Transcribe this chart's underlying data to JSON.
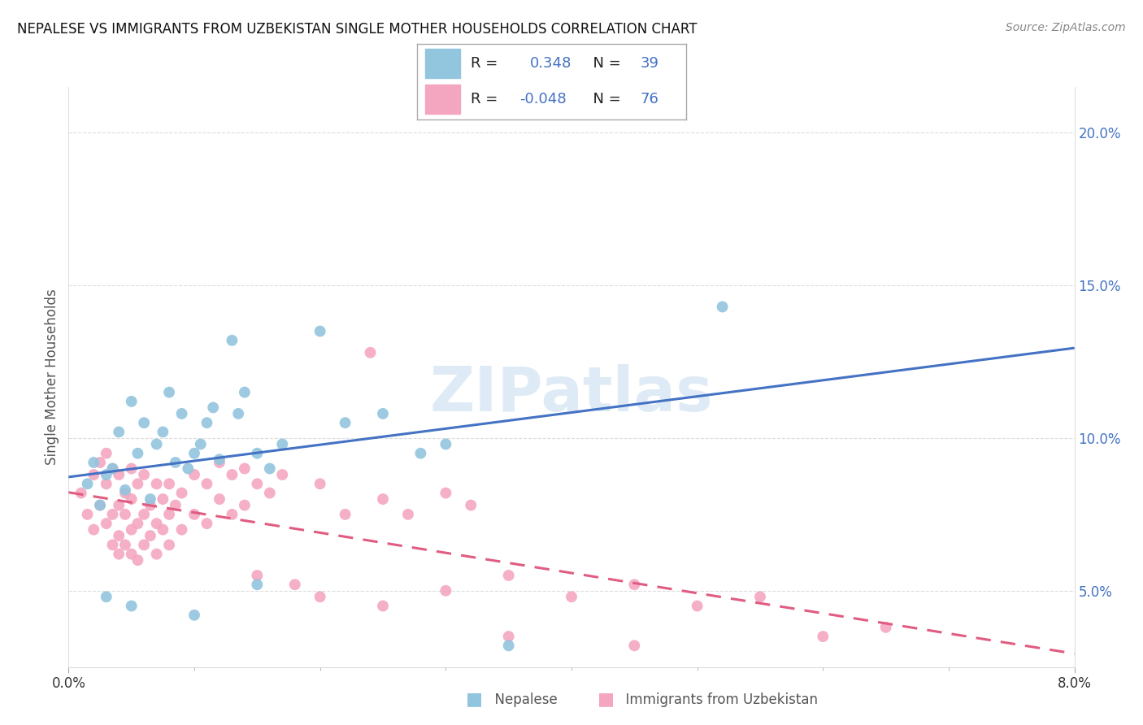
{
  "title": "NEPALESE VS IMMIGRANTS FROM UZBEKISTAN SINGLE MOTHER HOUSEHOLDS CORRELATION CHART",
  "source": "Source: ZipAtlas.com",
  "ylabel": "Single Mother Households",
  "watermark": "ZIPatlas",
  "x_min": 0.0,
  "x_max": 8.0,
  "y_min": 2.5,
  "y_max": 21.5,
  "ytick_labels": [
    "5.0%",
    "10.0%",
    "15.0%",
    "20.0%"
  ],
  "ytick_values": [
    5.0,
    10.0,
    15.0,
    20.0
  ],
  "xtick_labels": [
    "0.0%",
    "8.0%"
  ],
  "xtick_values": [
    0.0,
    8.0
  ],
  "xtick_minor": [
    1.0,
    2.0,
    3.0,
    4.0,
    5.0,
    6.0,
    7.0
  ],
  "nepalese_R": 0.348,
  "nepalese_N": 39,
  "uzbekistan_R": -0.048,
  "uzbekistan_N": 76,
  "nepalese_color": "#92c5de",
  "uzbekistan_color": "#f4a6c0",
  "nepalese_line_color": "#4472c4",
  "uzbekistan_line_color": "#e05c80",
  "legend_text_color": "#4472c4",
  "ytick_color": "#4472c4",
  "nepalese_scatter": [
    [
      0.15,
      8.5
    ],
    [
      0.2,
      9.2
    ],
    [
      0.25,
      7.8
    ],
    [
      0.3,
      8.8
    ],
    [
      0.35,
      9.0
    ],
    [
      0.4,
      10.2
    ],
    [
      0.45,
      8.3
    ],
    [
      0.5,
      11.2
    ],
    [
      0.55,
      9.5
    ],
    [
      0.6,
      10.5
    ],
    [
      0.65,
      8.0
    ],
    [
      0.7,
      9.8
    ],
    [
      0.75,
      10.2
    ],
    [
      0.8,
      11.5
    ],
    [
      0.85,
      9.2
    ],
    [
      0.9,
      10.8
    ],
    [
      0.95,
      9.0
    ],
    [
      1.0,
      9.5
    ],
    [
      1.05,
      9.8
    ],
    [
      1.1,
      10.5
    ],
    [
      1.15,
      11.0
    ],
    [
      1.2,
      9.3
    ],
    [
      1.3,
      13.2
    ],
    [
      1.35,
      10.8
    ],
    [
      1.4,
      11.5
    ],
    [
      1.5,
      9.5
    ],
    [
      1.6,
      9.0
    ],
    [
      1.7,
      9.8
    ],
    [
      2.0,
      13.5
    ],
    [
      2.2,
      10.5
    ],
    [
      2.5,
      10.8
    ],
    [
      2.8,
      9.5
    ],
    [
      3.0,
      9.8
    ],
    [
      0.3,
      4.8
    ],
    [
      0.5,
      4.5
    ],
    [
      1.0,
      4.2
    ],
    [
      1.5,
      5.2
    ],
    [
      5.2,
      14.3
    ],
    [
      3.5,
      3.2
    ]
  ],
  "uzbekistan_scatter": [
    [
      0.1,
      8.2
    ],
    [
      0.15,
      7.5
    ],
    [
      0.2,
      8.8
    ],
    [
      0.2,
      7.0
    ],
    [
      0.25,
      9.2
    ],
    [
      0.25,
      7.8
    ],
    [
      0.3,
      9.5
    ],
    [
      0.3,
      8.5
    ],
    [
      0.3,
      7.2
    ],
    [
      0.35,
      9.0
    ],
    [
      0.35,
      7.5
    ],
    [
      0.35,
      6.5
    ],
    [
      0.4,
      8.8
    ],
    [
      0.4,
      7.8
    ],
    [
      0.4,
      6.8
    ],
    [
      0.4,
      6.2
    ],
    [
      0.45,
      8.2
    ],
    [
      0.45,
      7.5
    ],
    [
      0.45,
      6.5
    ],
    [
      0.5,
      9.0
    ],
    [
      0.5,
      8.0
    ],
    [
      0.5,
      7.0
    ],
    [
      0.5,
      6.2
    ],
    [
      0.55,
      8.5
    ],
    [
      0.55,
      7.2
    ],
    [
      0.55,
      6.0
    ],
    [
      0.6,
      8.8
    ],
    [
      0.6,
      7.5
    ],
    [
      0.6,
      6.5
    ],
    [
      0.65,
      7.8
    ],
    [
      0.65,
      6.8
    ],
    [
      0.7,
      8.5
    ],
    [
      0.7,
      7.2
    ],
    [
      0.7,
      6.2
    ],
    [
      0.75,
      8.0
    ],
    [
      0.75,
      7.0
    ],
    [
      0.8,
      8.5
    ],
    [
      0.8,
      7.5
    ],
    [
      0.8,
      6.5
    ],
    [
      0.85,
      7.8
    ],
    [
      0.9,
      8.2
    ],
    [
      0.9,
      7.0
    ],
    [
      1.0,
      8.8
    ],
    [
      1.0,
      7.5
    ],
    [
      1.1,
      8.5
    ],
    [
      1.1,
      7.2
    ],
    [
      1.2,
      9.2
    ],
    [
      1.2,
      8.0
    ],
    [
      1.3,
      8.8
    ],
    [
      1.3,
      7.5
    ],
    [
      1.4,
      9.0
    ],
    [
      1.4,
      7.8
    ],
    [
      1.5,
      8.5
    ],
    [
      1.6,
      8.2
    ],
    [
      1.7,
      8.8
    ],
    [
      2.0,
      8.5
    ],
    [
      2.2,
      7.5
    ],
    [
      2.4,
      12.8
    ],
    [
      2.5,
      8.0
    ],
    [
      2.7,
      7.5
    ],
    [
      3.0,
      8.2
    ],
    [
      3.2,
      7.8
    ],
    [
      1.5,
      5.5
    ],
    [
      1.8,
      5.2
    ],
    [
      2.0,
      4.8
    ],
    [
      2.5,
      4.5
    ],
    [
      3.0,
      5.0
    ],
    [
      3.5,
      5.5
    ],
    [
      4.0,
      4.8
    ],
    [
      4.5,
      5.2
    ],
    [
      5.0,
      4.5
    ],
    [
      5.5,
      4.8
    ],
    [
      6.0,
      3.5
    ],
    [
      6.5,
      3.8
    ],
    [
      3.5,
      3.5
    ],
    [
      4.5,
      3.2
    ]
  ]
}
